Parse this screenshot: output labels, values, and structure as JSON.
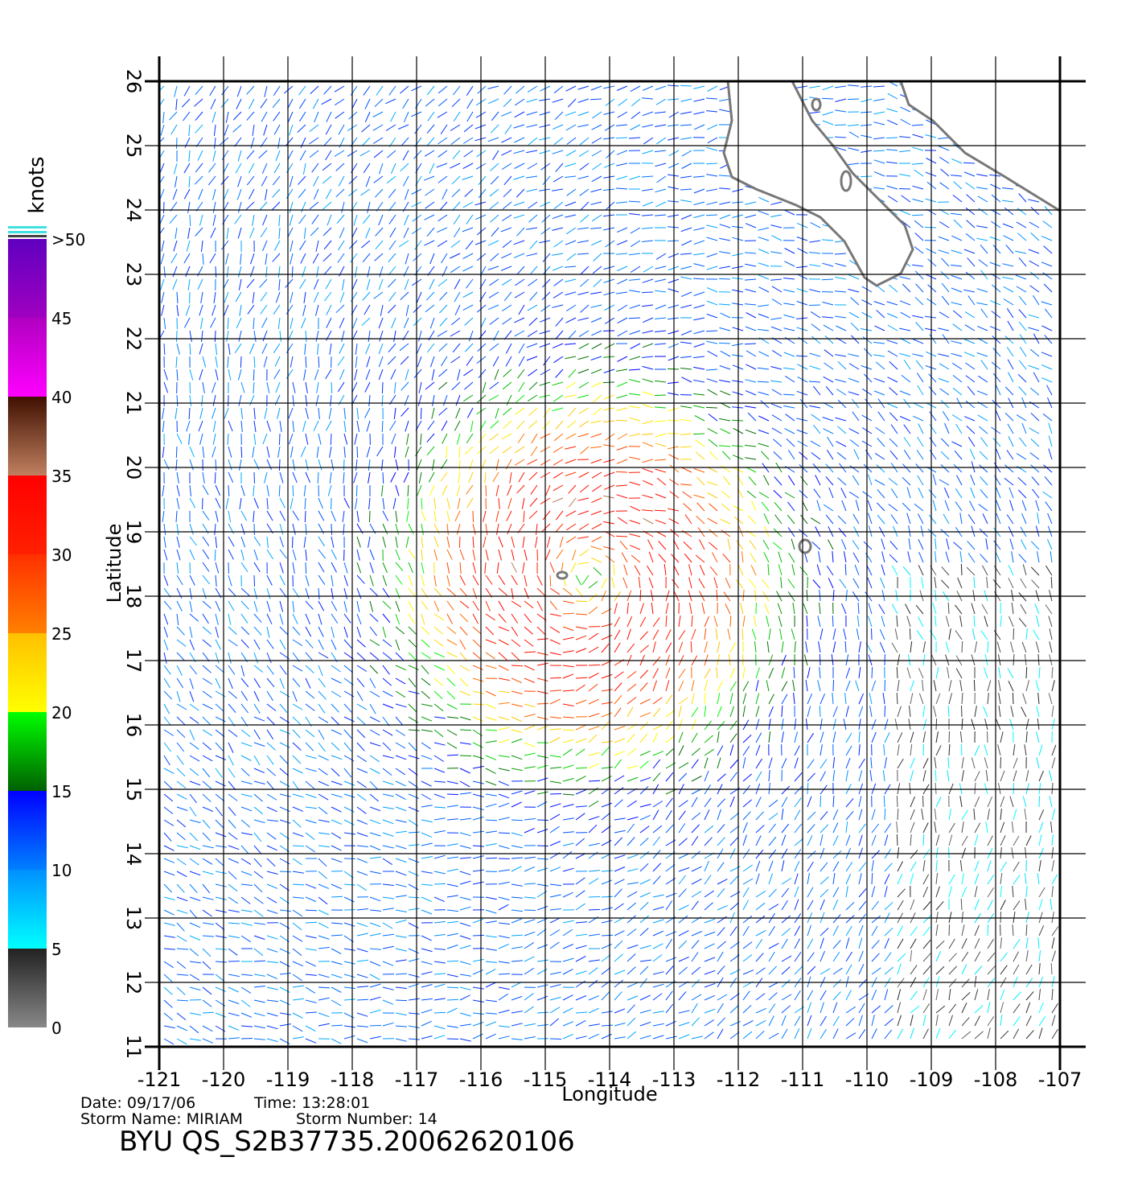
{
  "chart_data": {
    "type": "wind-map",
    "ylabel": "Latitude",
    "xlabel": "Longitude",
    "xlim": [
      -121,
      -107
    ],
    "xticks": [
      -121,
      -120,
      -119,
      -118,
      -117,
      -116,
      -115,
      -114,
      -113,
      -112,
      -111,
      -110,
      -109,
      -108,
      -107
    ],
    "ylim": [
      11,
      26
    ],
    "yticks": [
      11,
      12,
      13,
      14,
      15,
      16,
      17,
      18,
      19,
      20,
      21,
      22,
      23,
      24,
      25,
      26
    ],
    "grid": true,
    "colorbar": {
      "label": "knots",
      "lim": [
        0,
        50
      ],
      "ticks": [
        0,
        5,
        10,
        15,
        20,
        25,
        30,
        35,
        40,
        45,
        {
          "value": 50,
          "label": ">50"
        }
      ],
      "colors": [
        [
          "#888888",
          "#222222"
        ],
        [
          "#00ffff",
          "#0090ff"
        ],
        [
          "#0080ff",
          "#0000ff"
        ],
        [
          "#006000",
          "#00ff00"
        ],
        [
          "#ffff00",
          "#ffc000"
        ],
        [
          "#ff8000",
          "#ff3000"
        ],
        [
          "#ff2000",
          "#ff0000"
        ],
        [
          "#c08060",
          "#401000"
        ],
        [
          "#ff00ff",
          "#b000c0"
        ],
        [
          "#a000c0",
          "#6000c0"
        ]
      ]
    },
    "info": {
      "date": "Date: 09/17/06",
      "time": "Time: 13:28:01",
      "storm_name": "Storm Name: MIRIAM",
      "storm_number": "Storm Number: 14",
      "file": "BYU QS_S2B37735.20062620106"
    }
  }
}
